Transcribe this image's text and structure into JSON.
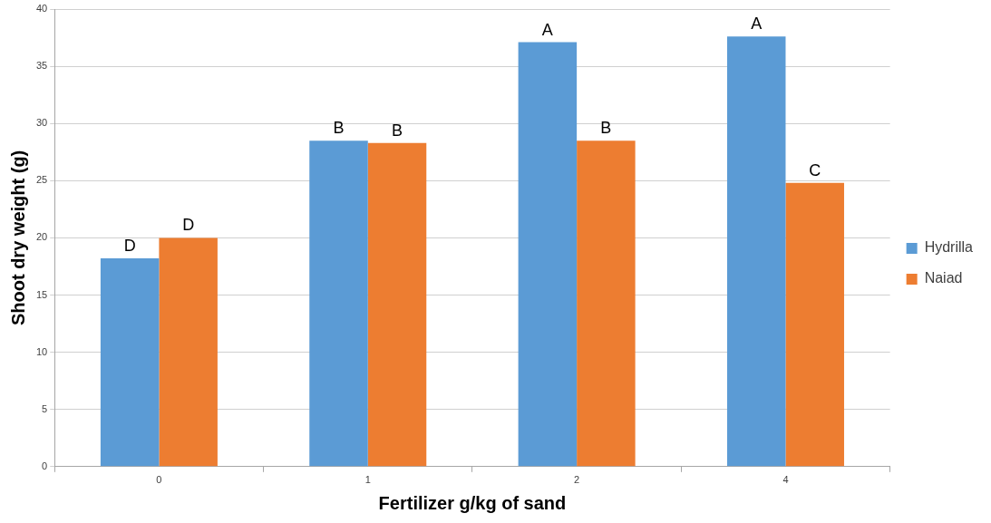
{
  "chart_data": {
    "type": "bar",
    "xlabel": "Fertilizer g/kg of sand",
    "ylabel": "Shoot dry weight (g)",
    "categories": [
      "0",
      "1",
      "2",
      "4"
    ],
    "series": [
      {
        "name": "Hydrilla",
        "color": "#5b9bd5",
        "values": [
          18.2,
          28.5,
          37.1,
          37.6
        ],
        "value_labels": [
          "D",
          "B",
          "A",
          "A"
        ]
      },
      {
        "name": "Naiad",
        "color": "#ed7d31",
        "values": [
          20.0,
          28.3,
          28.5,
          24.8
        ],
        "value_labels": [
          "D",
          "B",
          "B",
          "C"
        ]
      }
    ],
    "ylim": [
      0,
      40
    ],
    "yticks": [
      0,
      5,
      10,
      15,
      20,
      25,
      30,
      35,
      40
    ],
    "grid": "y",
    "legend": "right"
  }
}
